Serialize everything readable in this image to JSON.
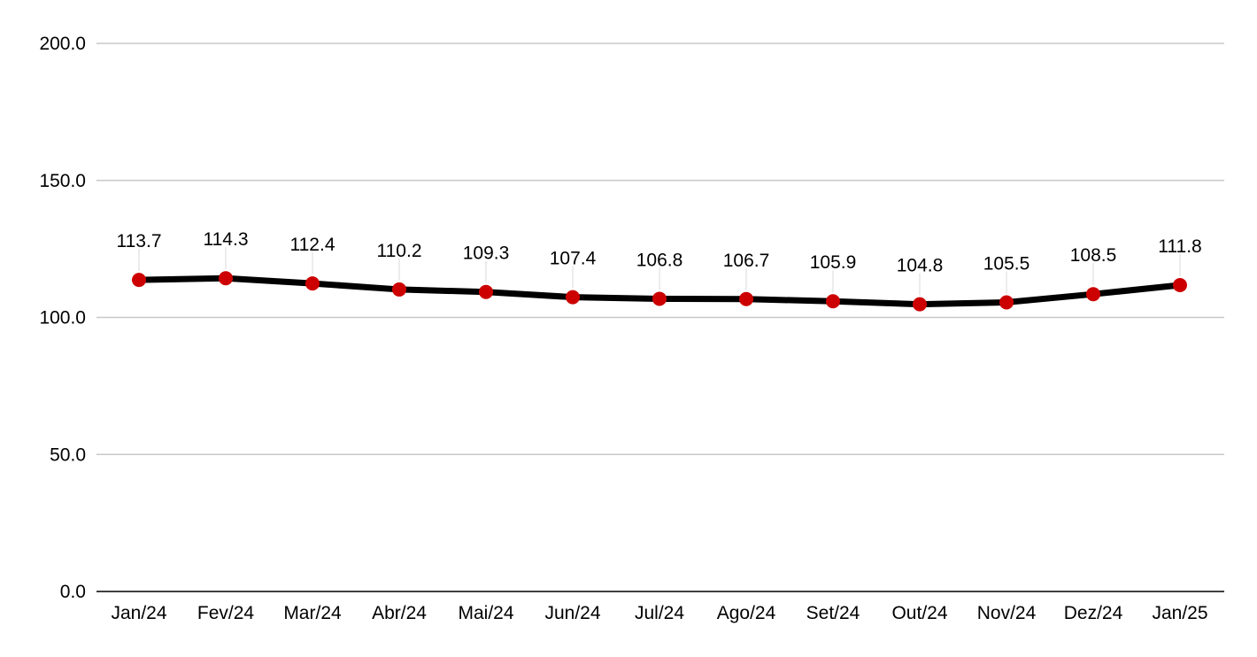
{
  "chart_data": {
    "type": "line",
    "title": "",
    "xlabel": "",
    "ylabel": "",
    "categories": [
      "Jan/24",
      "Fev/24",
      "Mar/24",
      "Abr/24",
      "Mai/24",
      "Jun/24",
      "Jul/24",
      "Ago/24",
      "Set/24",
      "Out/24",
      "Nov/24",
      "Dez/24",
      "Jan/25"
    ],
    "series": [
      {
        "values": [
          113.7,
          114.3,
          112.4,
          110.2,
          109.3,
          107.4,
          106.8,
          106.7,
          105.9,
          104.8,
          105.5,
          108.5,
          111.8
        ],
        "line_color": "#000000",
        "marker_color": "#cc0000"
      }
    ],
    "data_labels": [
      "113.7",
      "114.3",
      "112.4",
      "110.2",
      "109.3",
      "107.4",
      "106.8",
      "106.7",
      "105.9",
      "104.8",
      "105.5",
      "108.5",
      "111.8"
    ],
    "y_ticks": [
      0,
      50,
      100,
      150,
      200
    ],
    "y_tick_labels": [
      "0.0",
      "50.0",
      "100.0",
      "150.0",
      "200.0"
    ],
    "ylim": [
      0,
      200
    ],
    "grid": true,
    "gridline_color": "#c8c8c8",
    "legend": "none"
  }
}
